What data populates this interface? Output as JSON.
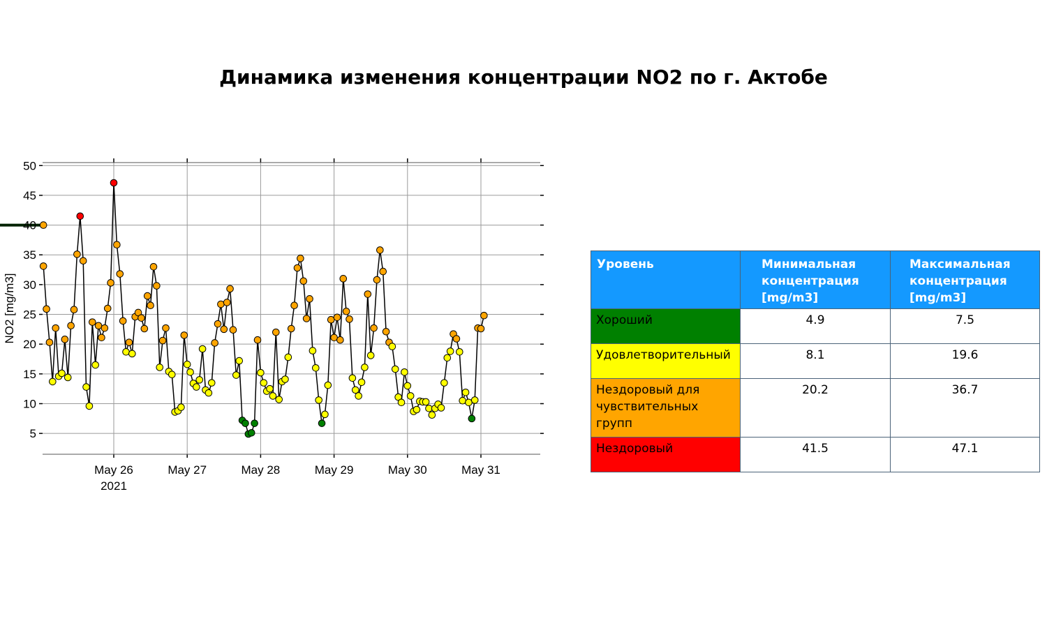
{
  "title": "Динамика изменения концентрации NO2 по г. Актобе",
  "chart_data": {
    "type": "scatter",
    "ylabel": "NO2 [mg/m3]",
    "xlabel": "",
    "ylim": [
      1.5,
      50.5
    ],
    "yticks": [
      5,
      10,
      15,
      20,
      25,
      30,
      35,
      40,
      45,
      50
    ],
    "xticks": [
      {
        "label": "May 26",
        "sublabel": "2021",
        "day": 26
      },
      {
        "label": "May 27",
        "sublabel": "",
        "day": 27
      },
      {
        "label": "May 28",
        "sublabel": "",
        "day": 28
      },
      {
        "label": "May 29",
        "sublabel": "",
        "day": 29
      },
      {
        "label": "May 30",
        "sublabel": "",
        "day": 30
      },
      {
        "label": "May 31",
        "sublabel": "",
        "day": 31
      }
    ],
    "grid": true,
    "threshold": {
      "value": 40,
      "x_start": "2021-05-25 01:00",
      "x_end": "2021-06-01 00:00",
      "color": "#002200",
      "endpoint_color": "#ffa500"
    },
    "series": [
      {
        "x_start": "2021-05-25 01:00",
        "x_step_hours": 1,
        "values": [
          33.1,
          25.9,
          20.3,
          13.7,
          22.7,
          14.6,
          15.1,
          20.8,
          14.4,
          23.1,
          25.8,
          35.1,
          41.5,
          34.0,
          12.8,
          9.6,
          23.7,
          16.5,
          23.1,
          21.1,
          22.7,
          26.0,
          30.3,
          47.1,
          36.7,
          31.8,
          23.9,
          18.7,
          20.3,
          18.4,
          24.6,
          25.3,
          24.4,
          22.6,
          28.1,
          26.5,
          33.0,
          29.8,
          16.1,
          20.6,
          22.7,
          15.4,
          14.9,
          8.6,
          8.8,
          9.4,
          21.5,
          16.6,
          15.3,
          13.4,
          12.8,
          14.0,
          19.2,
          12.3,
          11.8,
          13.5,
          20.2,
          23.4,
          26.7,
          22.5,
          27.0,
          29.3,
          22.4,
          14.8,
          17.2,
          7.2,
          6.7,
          4.9,
          5.1,
          6.7,
          20.7,
          15.2,
          13.5,
          12.1,
          12.5,
          11.3,
          22.0,
          10.7,
          13.7,
          14.1,
          17.8,
          22.6,
          26.5,
          32.8,
          34.4,
          30.6,
          24.3,
          27.6,
          18.9,
          16.0,
          10.6,
          6.7,
          8.2,
          13.1,
          24.1,
          21.1,
          24.5,
          20.7,
          31.0,
          25.5,
          24.2,
          14.3,
          12.3,
          11.3,
          13.6,
          16.1,
          28.4,
          18.1,
          22.7,
          30.8,
          35.8,
          32.2,
          22.1,
          20.3,
          19.6,
          15.8,
          11.1,
          10.2,
          15.3,
          13.0,
          11.3,
          8.7,
          9.0,
          10.4,
          10.3,
          10.3,
          9.2,
          8.1,
          9.2,
          9.9,
          9.3,
          13.5,
          17.7,
          18.8,
          21.7,
          20.9,
          18.7,
          10.5,
          11.9,
          10.2,
          7.5,
          10.6,
          22.7,
          22.6,
          24.8
        ]
      }
    ],
    "marker_colors": {
      "good": "#008000",
      "satisfactory": "#ffff00",
      "unhealthy_sensitive": "#ffa500",
      "unhealthy": "#ff0000"
    },
    "level_thresholds": {
      "good_max": 7.5,
      "satisfactory_max": 19.6,
      "sensitive_max": 40.0
    }
  },
  "table": {
    "headers": [
      "Уровень",
      "Минимальная\n концентрация\n[mg/m3]",
      "Максимальная\nконцентрация\n[mg/m3]"
    ],
    "header_color": "#1499ff",
    "rows": [
      {
        "level": "Хороший",
        "min": "4.9",
        "max": "7.5",
        "color": "#008000"
      },
      {
        "level": "Удовлетворительный",
        "min": "8.1",
        "max": "19.6",
        "color": "#ffff00"
      },
      {
        "level": "Нездоровый для чувствительных групп",
        "min": "20.2",
        "max": "36.7",
        "color": "#ffa500"
      },
      {
        "level": "Нездоровый",
        "min": "41.5",
        "max": "47.1",
        "color": "#ff0000"
      }
    ]
  }
}
